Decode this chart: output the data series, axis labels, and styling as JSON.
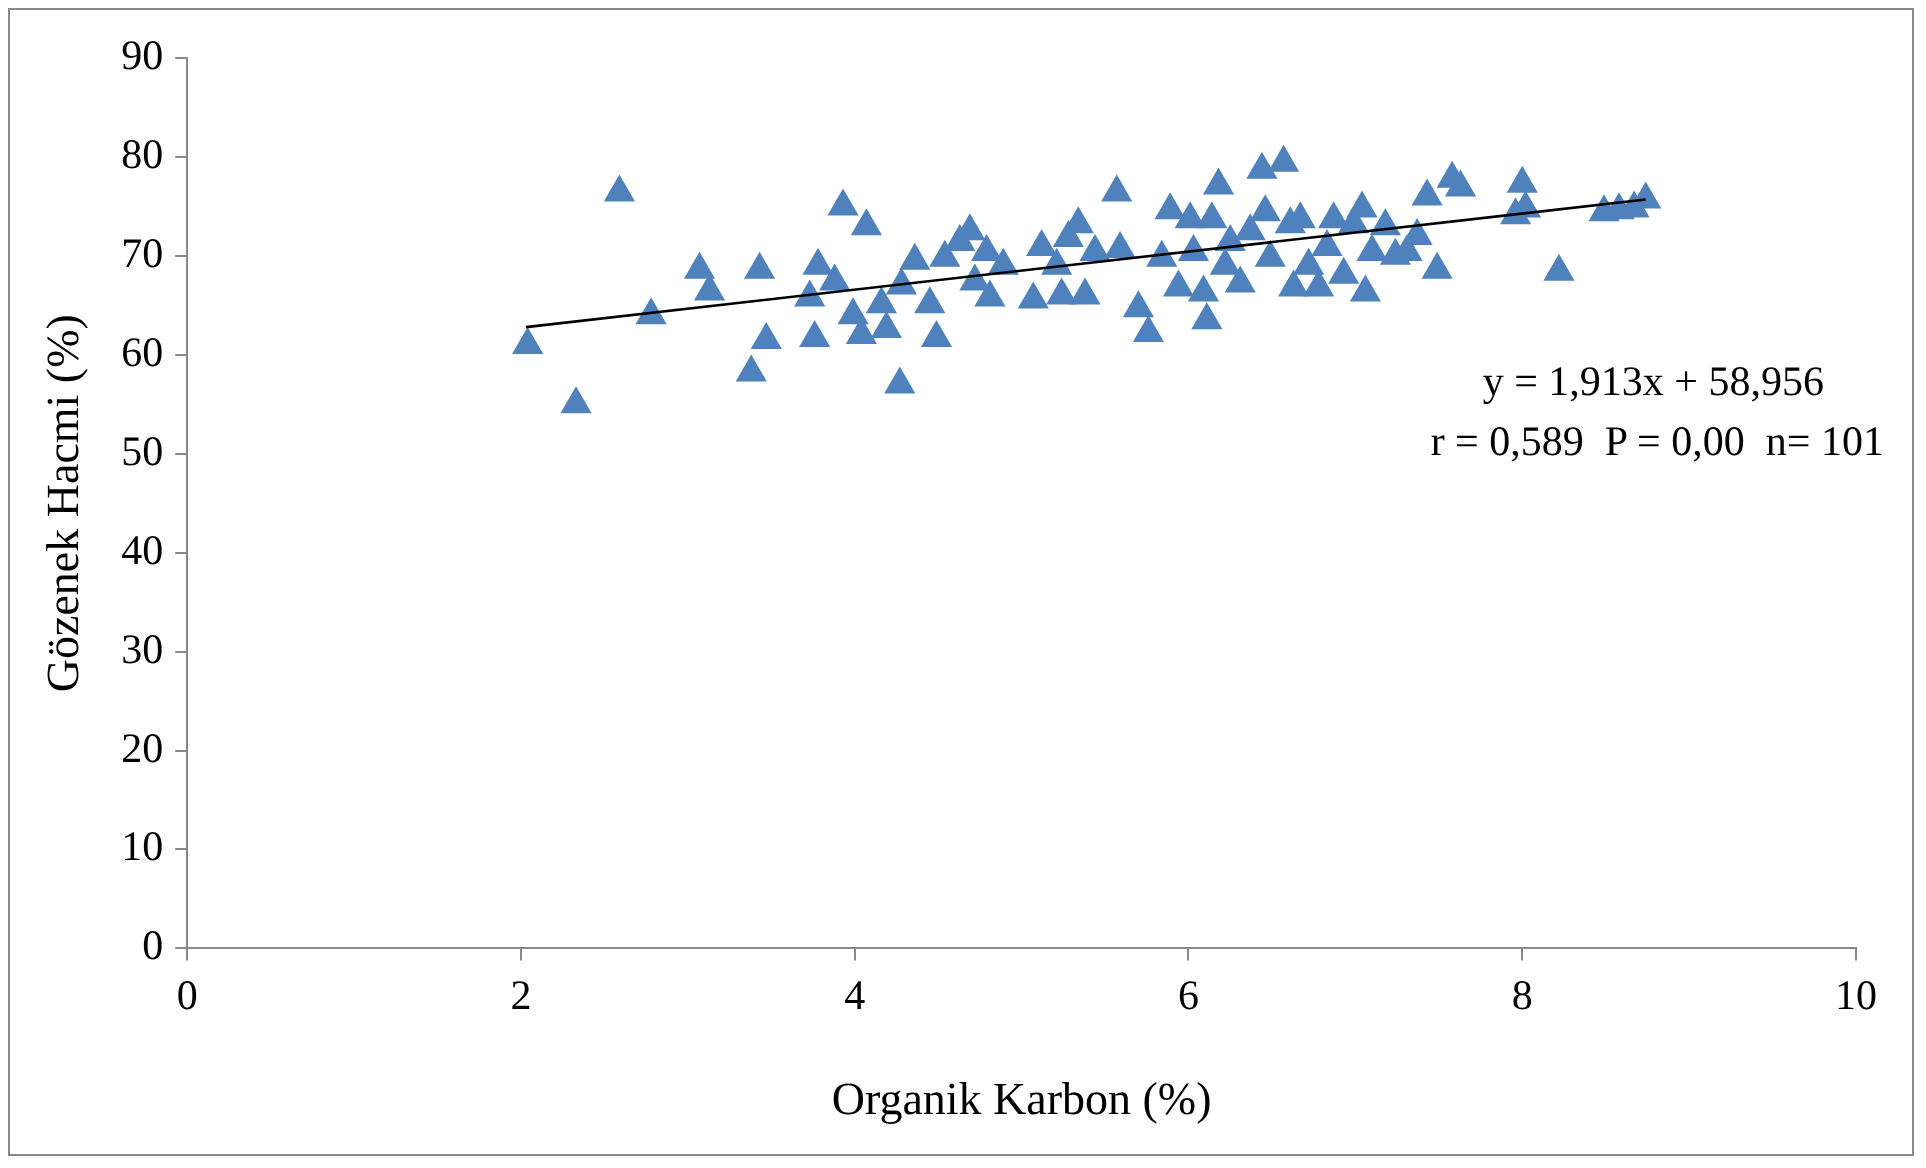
{
  "chart_data": {
    "type": "scatter",
    "xlabel": "Organik Karbon (%)",
    "ylabel": "Gözenek Hacmi (%)",
    "xlim": [
      0,
      10
    ],
    "xticks": [
      0,
      2,
      4,
      6,
      8,
      10
    ],
    "ylim": [
      0,
      90
    ],
    "yticks": [
      0,
      10,
      20,
      30,
      40,
      50,
      60,
      70,
      80,
      90
    ],
    "grid": false,
    "legend": false,
    "marker": "triangle",
    "annotations": [
      "y = 1,913x + 58,956",
      "r = 0,589  P = 0,00  n= 101"
    ],
    "series": [
      {
        "color": "#4f81bd",
        "x": [
          2.04,
          2.33,
          2.59,
          2.78,
          3.07,
          3.13,
          3.43,
          3.38,
          3.47,
          3.73,
          3.78,
          3.76,
          3.88,
          3.93,
          3.99,
          4.04,
          4.07,
          4.16,
          4.19,
          4.28,
          4.27,
          4.36,
          4.45,
          4.49,
          4.54,
          4.63,
          4.69,
          4.72,
          4.79,
          4.81,
          4.89,
          5.07,
          5.12,
          5.21,
          5.24,
          5.28,
          5.34,
          5.38,
          5.44,
          5.57,
          5.59,
          5.7,
          5.76,
          5.84,
          5.89,
          5.94,
          6.01,
          6.03,
          6.09,
          6.11,
          6.14,
          6.18,
          6.22,
          6.25,
          6.31,
          6.37,
          6.44,
          6.46,
          6.49,
          6.57,
          6.61,
          6.63,
          6.67,
          6.72,
          6.78,
          6.83,
          6.87,
          6.93,
          6.99,
          7.04,
          7.06,
          7.1,
          7.18,
          7.24,
          7.31,
          7.37,
          7.43,
          7.49,
          7.58,
          7.63,
          7.96,
          8.0,
          8.02,
          8.22,
          8.49,
          8.58,
          8.67,
          8.74
        ],
        "values": [
          61,
          55,
          76.4,
          64,
          68.6,
          66.4,
          68.6,
          58.2,
          61.5,
          65.8,
          69,
          61.7,
          67.4,
          75,
          64,
          62,
          73,
          65.1,
          62.6,
          67,
          57,
          69.5,
          65.1,
          61.7,
          69.8,
          71.4,
          72.5,
          67.4,
          70.4,
          65.8,
          69,
          65.6,
          70.9,
          69,
          66,
          71.8,
          73.2,
          66,
          70.4,
          76.4,
          70.7,
          64.7,
          62.2,
          69.8,
          74.6,
          66.8,
          73.7,
          70.4,
          66.3,
          63.5,
          73.7,
          77.1,
          69,
          71.4,
          67.2,
          72.5,
          78.7,
          74.4,
          69.8,
          79.4,
          73.2,
          66.8,
          73.7,
          69,
          66.8,
          70.9,
          73.7,
          68.1,
          73.2,
          74.8,
          66.3,
          70.4,
          73,
          70,
          70.4,
          72,
          76,
          68.6,
          77.8,
          76.9,
          74.1,
          77.3,
          74.8,
          68.4,
          74.4,
          74.6,
          74.8,
          75.7
        ]
      },
      {
        "type": "line",
        "color": "#000000",
        "marker": "none",
        "x": [
          2.03,
          8.74
        ],
        "values": [
          62.8,
          75.7
        ]
      }
    ]
  }
}
